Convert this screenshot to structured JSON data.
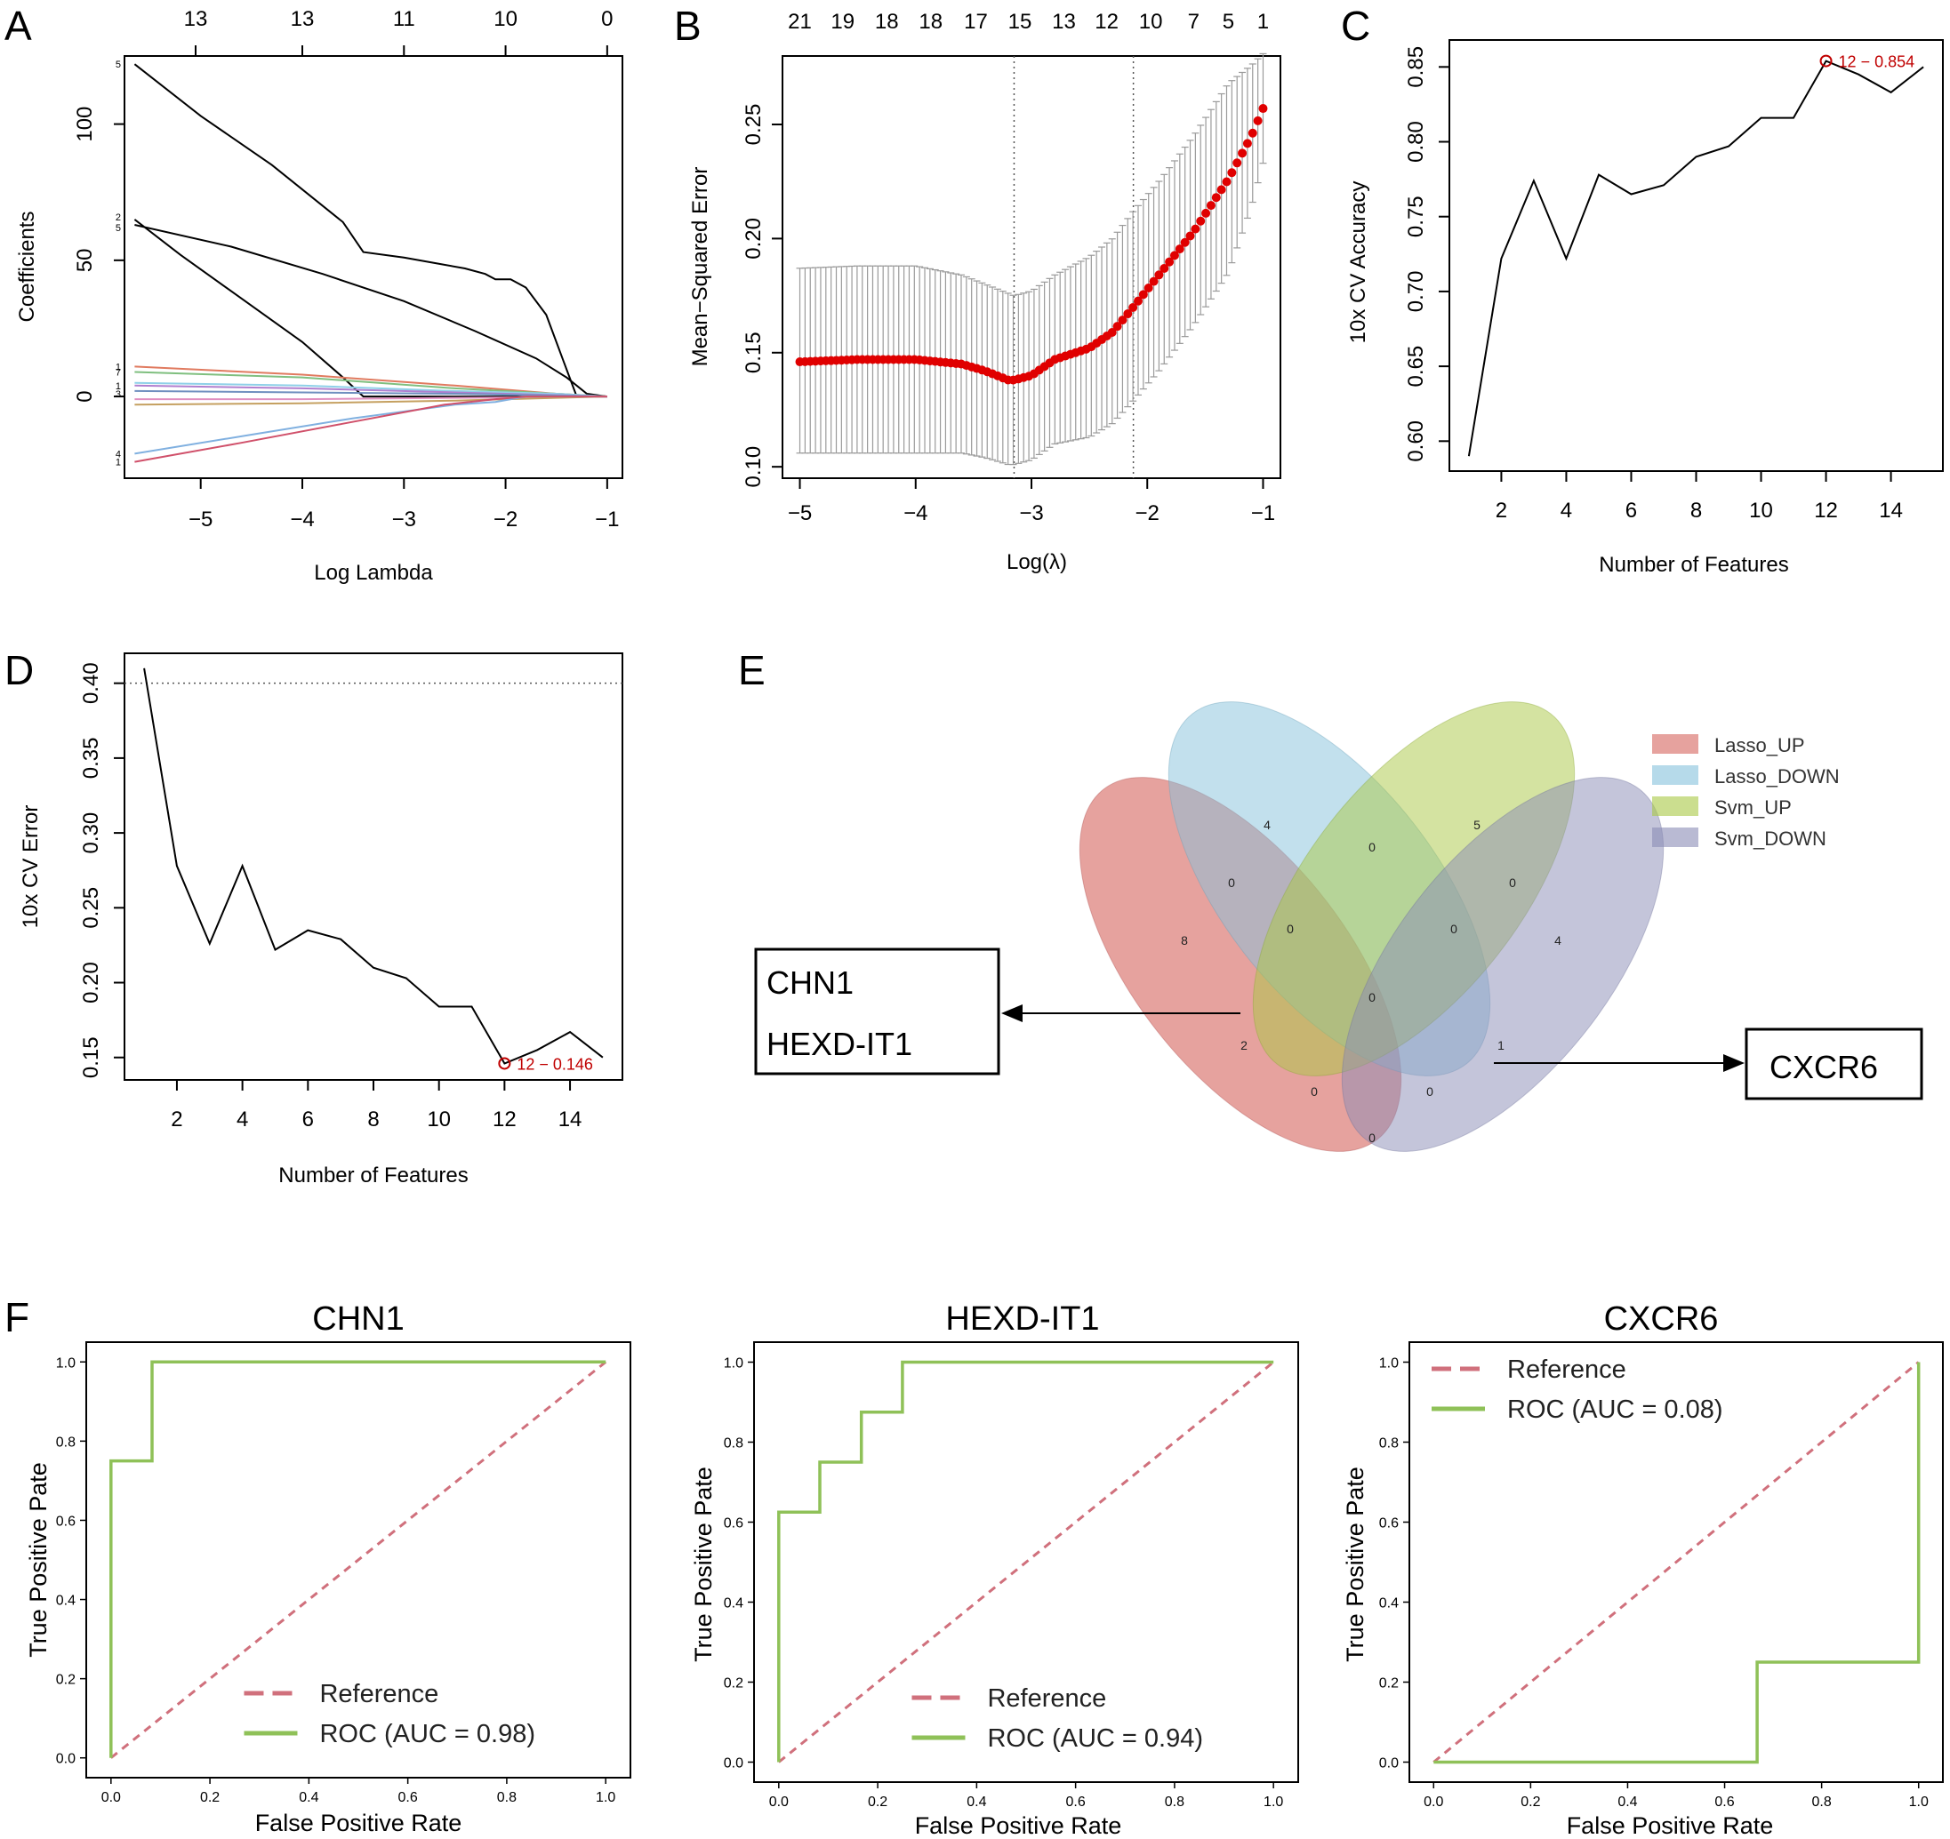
{
  "colors": {
    "axis": "#000000",
    "red": "#c00000",
    "cv_gray": "#9a9a9a",
    "roc_green": "#8fc158",
    "roc_ref": "#d0707c",
    "venn_lasso_up": "#d6645e",
    "venn_lasso_down": "#85c2dc",
    "venn_svm_up": "#a9c844",
    "venn_svm_down": "#8a8cb6"
  },
  "chart_data": [
    {
      "id": "A",
      "panel_label": "A",
      "type": "line",
      "title": "",
      "xlabel": "Log Lambda",
      "ylabel": "Coefficients",
      "xlim": [
        -5.75,
        -0.85
      ],
      "ylim": [
        -30,
        125
      ],
      "xticks": [
        -5,
        -4,
        -3,
        -2,
        -1
      ],
      "xtick_labels": [
        "−5",
        "−4",
        "−3",
        "−2",
        "−1"
      ],
      "yticks": [
        0,
        50,
        100
      ],
      "top_axis": {
        "positions": [
          -5.05,
          -4.0,
          -3.0,
          -2.0,
          -1.0
        ],
        "labels": [
          "13",
          "13",
          "11",
          "10",
          "0"
        ]
      },
      "series": [
        {
          "name": "path1",
          "color": "#000000",
          "x": [
            -5.65,
            -5,
            -4.3,
            -3.6,
            -3.4,
            -3,
            -2.7,
            -2.4,
            -2.2,
            -2.1,
            -1.95,
            -1.8,
            -1.6,
            -1.4,
            -1.3,
            -1
          ],
          "y": [
            122,
            103,
            85,
            64,
            53,
            51,
            49,
            47,
            45,
            43,
            43,
            40,
            30,
            10,
            0,
            0
          ]
        },
        {
          "name": "path2",
          "color": "#000000",
          "x": [
            -5.65,
            -4.7,
            -3.8,
            -3.0,
            -2.3,
            -1.7,
            -1.4,
            -1.2,
            -1
          ],
          "y": [
            63,
            55,
            45,
            35,
            24,
            14,
            7,
            1,
            0
          ]
        },
        {
          "name": "path3",
          "color": "#000000",
          "x": [
            -5.65,
            -5.2,
            -4.6,
            -4.0,
            -3.6,
            -3.4,
            -1
          ],
          "y": [
            65,
            52,
            36,
            20,
            7,
            0,
            0
          ]
        },
        {
          "name": "path4",
          "color": "#e07a5f",
          "x": [
            -5.65,
            -4,
            -2.5,
            -1.5,
            -1
          ],
          "y": [
            11,
            8,
            4,
            1,
            0
          ]
        },
        {
          "name": "path5",
          "color": "#7fbf7f",
          "x": [
            -5.65,
            -4,
            -2.5,
            -1.5,
            -1
          ],
          "y": [
            9,
            7,
            3,
            1,
            0
          ]
        },
        {
          "name": "path6",
          "color": "#8fd0e8",
          "x": [
            -5.65,
            -4,
            -2.5,
            -1.5,
            -1
          ],
          "y": [
            5,
            4,
            2,
            1,
            0
          ]
        },
        {
          "name": "path7",
          "color": "#b07fcf",
          "x": [
            -5.65,
            -4,
            -2.5,
            -1.5,
            -1
          ],
          "y": [
            4,
            3,
            1.5,
            0.5,
            0
          ]
        },
        {
          "name": "path8",
          "color": "#6f8fbf",
          "x": [
            -5.65,
            -4,
            -2.5,
            -1.5,
            -1
          ],
          "y": [
            2,
            1.5,
            1,
            0.3,
            0
          ]
        },
        {
          "name": "path9",
          "color": "#e08fc0",
          "x": [
            -5.65,
            -4,
            -2.5,
            -1.5,
            -1
          ],
          "y": [
            -1,
            -1,
            -0.5,
            -0.2,
            0
          ]
        },
        {
          "name": "path10",
          "color": "#c5a060",
          "x": [
            -5.65,
            -4,
            -2.5,
            -1.5,
            -1
          ],
          "y": [
            -3,
            -2.5,
            -1.5,
            -0.5,
            0
          ]
        },
        {
          "name": "path11",
          "color": "#80b0e0",
          "x": [
            -5.65,
            -4.5,
            -3.5,
            -2.5,
            -2.1,
            -1.8,
            -1
          ],
          "y": [
            -21,
            -14,
            -8,
            -3,
            -2,
            0,
            0
          ]
        },
        {
          "name": "path12",
          "color": "#d0506a",
          "x": [
            -5.65,
            -4.6,
            -3.6,
            -2.6,
            -2.1,
            -1.8,
            -1
          ],
          "y": [
            -24,
            -17,
            -10,
            -3,
            -1,
            0,
            0
          ]
        }
      ],
      "line_labels": [
        {
          "text": "5",
          "y": 122
        },
        {
          "text": "2",
          "y": 66
        },
        {
          "text": "5",
          "y": 62
        },
        {
          "text": "1",
          "y": 11
        },
        {
          "text": "7",
          "y": 9
        },
        {
          "text": "1",
          "y": 4
        },
        {
          "text": "3",
          "y": 1
        },
        {
          "text": "4",
          "y": -21
        },
        {
          "text": "1",
          "y": -24
        }
      ]
    },
    {
      "id": "B",
      "panel_label": "B",
      "type": "scatter",
      "title": "",
      "xlabel": "Log(λ)",
      "ylabel": "Mean−Squared Error",
      "xlim": [
        -5.15,
        -0.85
      ],
      "ylim": [
        0.095,
        0.28
      ],
      "xticks": [
        -5,
        -4,
        -3,
        -2,
        -1
      ],
      "xtick_labels": [
        "−5",
        "−4",
        "−3",
        "−2",
        "−1"
      ],
      "yticks": [
        0.1,
        0.15,
        0.2,
        0.25
      ],
      "ytick_labels": [
        "0.10",
        "0.15",
        "0.20",
        "0.25"
      ],
      "top_axis": {
        "positions": [
          -5.0,
          -4.63,
          -4.25,
          -3.87,
          -3.48,
          -3.1,
          -2.72,
          -2.35,
          -1.97,
          -1.6,
          -1.3,
          -1.0
        ],
        "labels": [
          "21",
          "19",
          "18",
          "18",
          "17",
          "15",
          "13",
          "12",
          "10",
          "7",
          "5",
          "1"
        ]
      },
      "vlines": [
        -3.15,
        -2.12
      ],
      "curve": {
        "x": [
          -5,
          -4.5,
          -4,
          -3.6,
          -3.4,
          -3.2,
          -3.15,
          -3.0,
          -2.8,
          -2.5,
          -2.3,
          -2.12,
          -1.9,
          -1.6,
          -1.3,
          -1.1,
          -1.0
        ],
        "y": [
          0.146,
          0.147,
          0.147,
          0.145,
          0.142,
          0.138,
          0.138,
          0.14,
          0.147,
          0.152,
          0.159,
          0.17,
          0.184,
          0.203,
          0.226,
          0.245,
          0.257
        ]
      },
      "error_band": {
        "x": [
          -5,
          -4.5,
          -4,
          -3.6,
          -3.4,
          -3.2,
          -3.15,
          -3.0,
          -2.8,
          -2.5,
          -2.3,
          -2.12,
          -1.9,
          -1.6,
          -1.3,
          -1.1,
          -1.0
        ],
        "upper": [
          0.187,
          0.188,
          0.188,
          0.184,
          0.18,
          0.176,
          0.175,
          0.177,
          0.184,
          0.192,
          0.2,
          0.212,
          0.225,
          0.245,
          0.268,
          0.276,
          0.281
        ],
        "lower": [
          0.106,
          0.106,
          0.106,
          0.106,
          0.104,
          0.101,
          0.101,
          0.103,
          0.11,
          0.113,
          0.119,
          0.129,
          0.142,
          0.162,
          0.185,
          0.214,
          0.233
        ]
      },
      "n_points": 90
    },
    {
      "id": "C",
      "panel_label": "C",
      "type": "line",
      "title": "",
      "xlabel": "Number of Features",
      "ylabel": "10x CV Accuracy",
      "xlim": [
        0.4,
        15.6
      ],
      "ylim": [
        0.58,
        0.868
      ],
      "xticks": [
        2,
        4,
        6,
        8,
        10,
        12,
        14
      ],
      "yticks": [
        0.6,
        0.65,
        0.7,
        0.75,
        0.8,
        0.85
      ],
      "ytick_labels": [
        "0.60",
        "0.65",
        "0.70",
        "0.75",
        "0.80",
        "0.85"
      ],
      "x": [
        1,
        2,
        3,
        4,
        5,
        6,
        7,
        8,
        9,
        10,
        11,
        12,
        13,
        14,
        15
      ],
      "y": [
        0.59,
        0.722,
        0.774,
        0.722,
        0.778,
        0.765,
        0.771,
        0.79,
        0.797,
        0.816,
        0.816,
        0.854,
        0.845,
        0.833,
        0.85
      ],
      "highlight": {
        "x": 12,
        "y": 0.854,
        "label": "12 − 0.854"
      }
    },
    {
      "id": "D",
      "panel_label": "D",
      "type": "line",
      "title": "",
      "xlabel": "Number of Features",
      "ylabel": "10x CV Error",
      "xlim": [
        0.4,
        15.6
      ],
      "ylim": [
        0.135,
        0.42
      ],
      "xticks": [
        2,
        4,
        6,
        8,
        10,
        12,
        14
      ],
      "yticks": [
        0.15,
        0.2,
        0.25,
        0.3,
        0.35,
        0.4
      ],
      "ytick_labels": [
        "0.15",
        "0.20",
        "0.25",
        "0.30",
        "0.35",
        "0.40"
      ],
      "hline": 0.4,
      "x": [
        1,
        2,
        3,
        4,
        5,
        6,
        7,
        8,
        9,
        10,
        11,
        12,
        13,
        14,
        15
      ],
      "y": [
        0.41,
        0.278,
        0.226,
        0.278,
        0.222,
        0.235,
        0.229,
        0.21,
        0.203,
        0.184,
        0.184,
        0.146,
        0.155,
        0.167,
        0.15
      ],
      "highlight": {
        "x": 12,
        "y": 0.146,
        "label": "12 − 0.146"
      }
    },
    {
      "id": "F1",
      "panel_label": "F",
      "type": "line",
      "title": "CHN1",
      "xlabel": "False Positive Rate",
      "ylabel": "True Positive Pate",
      "xlim": [
        -0.05,
        1.05
      ],
      "ylim": [
        -0.05,
        1.05
      ],
      "ticks": [
        0.0,
        0.2,
        0.4,
        0.6,
        0.8,
        1.0
      ],
      "tick_labels": [
        "0.0",
        "0.2",
        "0.4",
        "0.6",
        "0.8",
        "1.0"
      ],
      "legend_position": "bottom-right",
      "reference": {
        "name": "Reference",
        "x": [
          0,
          1
        ],
        "y": [
          0,
          1
        ]
      },
      "roc": {
        "name": "ROC (AUC = 0.98)",
        "auc": 0.98,
        "x": [
          0,
          0,
          0.083,
          0.083,
          1.0
        ],
        "y": [
          0,
          0.75,
          0.75,
          1.0,
          1.0
        ]
      }
    },
    {
      "id": "F2",
      "panel_label": "",
      "type": "line",
      "title": "HEXD-IT1",
      "xlabel": "False Positive Rate",
      "ylabel": "True Positive Pate",
      "xlim": [
        -0.05,
        1.05
      ],
      "ylim": [
        -0.05,
        1.05
      ],
      "ticks": [
        0.0,
        0.2,
        0.4,
        0.6,
        0.8,
        1.0
      ],
      "tick_labels": [
        "0.0",
        "0.2",
        "0.4",
        "0.6",
        "0.8",
        "1.0"
      ],
      "legend_position": "bottom-right",
      "reference": {
        "name": "Reference",
        "x": [
          0,
          1
        ],
        "y": [
          0,
          1
        ]
      },
      "roc": {
        "name": "ROC (AUC = 0.94)",
        "auc": 0.94,
        "x": [
          0,
          0,
          0.083,
          0.083,
          0.167,
          0.167,
          0.25,
          0.25,
          1.0
        ],
        "y": [
          0,
          0.625,
          0.625,
          0.75,
          0.75,
          0.875,
          0.875,
          1.0,
          1.0
        ]
      }
    },
    {
      "id": "F3",
      "panel_label": "",
      "type": "line",
      "title": "CXCR6",
      "xlabel": "False Positive Rate",
      "ylabel": "True Positive Pate",
      "xlim": [
        -0.05,
        1.05
      ],
      "ylim": [
        -0.05,
        1.05
      ],
      "ticks": [
        0.0,
        0.2,
        0.4,
        0.6,
        0.8,
        1.0
      ],
      "tick_labels": [
        "0.0",
        "0.2",
        "0.4",
        "0.6",
        "0.8",
        "1.0"
      ],
      "legend_position": "top-left",
      "reference": {
        "name": "Reference",
        "x": [
          0,
          1
        ],
        "y": [
          0,
          1
        ]
      },
      "roc": {
        "name": "ROC (AUC = 0.08)",
        "auc": 0.08,
        "x": [
          0,
          0.667,
          0.667,
          1.0,
          1.0
        ],
        "y": [
          0,
          0,
          0.25,
          0.25,
          1.0
        ]
      }
    }
  ],
  "venn": {
    "panel_label": "E",
    "legend": [
      "Lasso_UP",
      "Lasso_DOWN",
      "Svm_UP",
      "Svm_DOWN"
    ],
    "counts": {
      "lasso_down_only": "4",
      "svm_up_only": "5",
      "lasso_up_only": "8",
      "svm_down_only": "4",
      "ld_su": "0",
      "lu_ld": "0",
      "su_sd": "0",
      "lu_ld_su": "0",
      "ld_su_sd": "0",
      "all_four": "0",
      "lu_su": "2",
      "ld_sd": "1",
      "lu_su_sd": "0",
      "lu_ld_sd": "0",
      "lu_sd": "0"
    },
    "callout_left": [
      "CHN1",
      "HEXD-IT1"
    ],
    "callout_right": [
      "CXCR6"
    ]
  }
}
